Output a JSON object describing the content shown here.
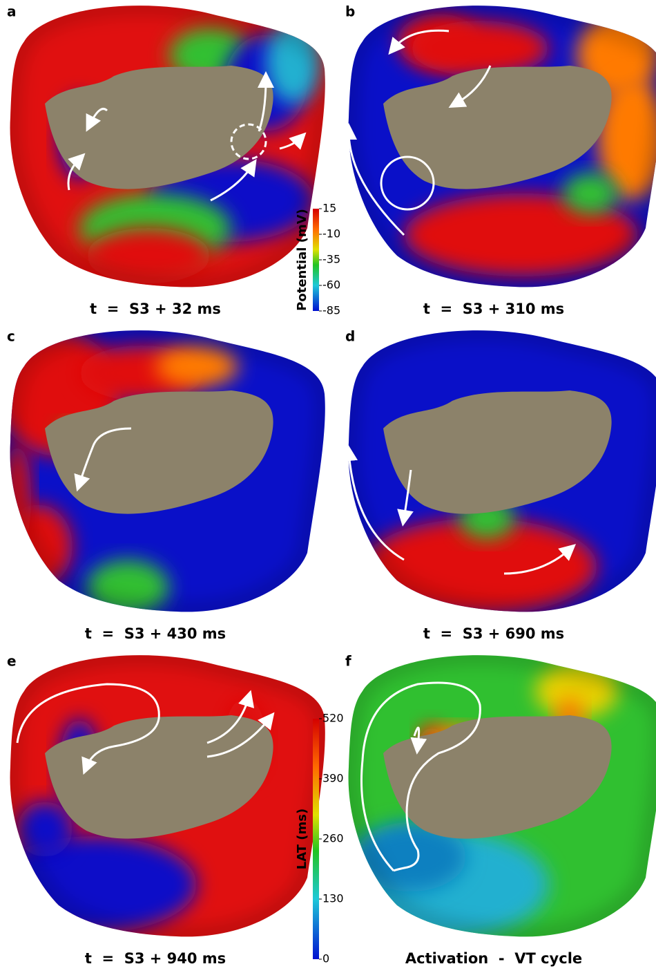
{
  "panels": [
    {
      "letter": "a",
      "caption": "t  =  S3 + 32 ms"
    },
    {
      "letter": "b",
      "caption": "t  =  S3 + 310 ms"
    },
    {
      "letter": "c",
      "caption": "t  =  S3 + 430 ms"
    },
    {
      "letter": "d",
      "caption": "t  =  S3 + 690 ms"
    },
    {
      "letter": "e",
      "caption": "t  =  S3 + 940 ms"
    },
    {
      "letter": "f",
      "caption": "Activation  -  VT cycle"
    }
  ],
  "colorbars": [
    {
      "label": "Potential (mV)",
      "ticks": [
        15,
        -10,
        -35,
        -60,
        -85
      ]
    },
    {
      "label": "LAT (ms)",
      "ticks": [
        520,
        390,
        260,
        130,
        0
      ]
    }
  ]
}
